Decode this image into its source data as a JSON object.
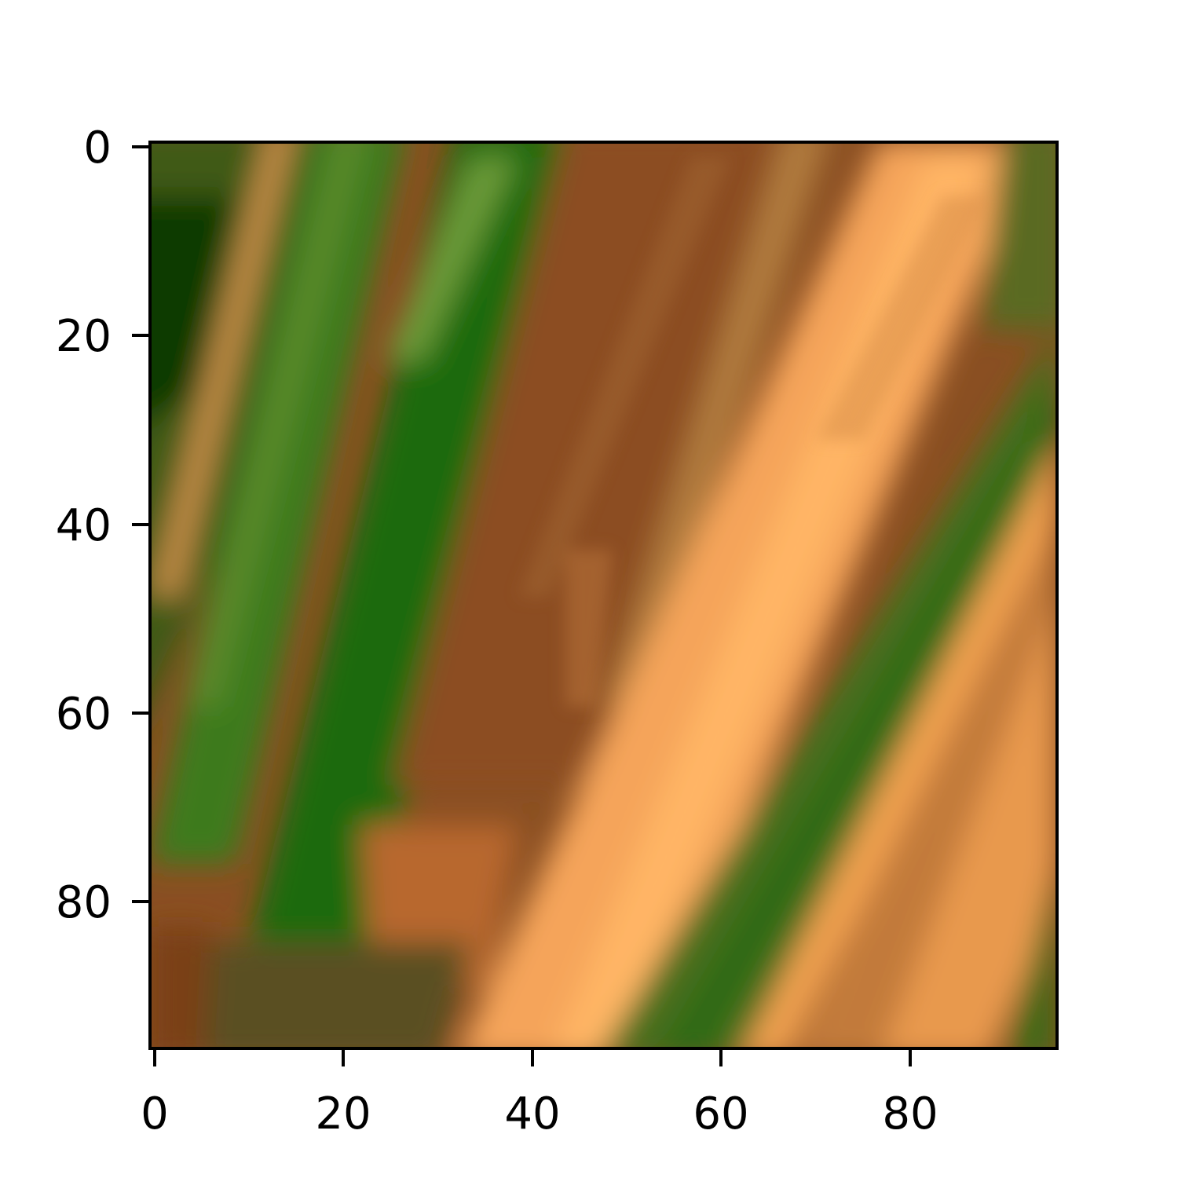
{
  "image": {
    "subject": "close-up of crop rows with green vegetation and tan/orange soil strips",
    "pixel_grid": "96x96",
    "dominant_colors": [
      "#8a4f22",
      "#f0a055",
      "#2f6a12",
      "#5a7a2a",
      "#0e3a04",
      "#c07a3a"
    ]
  },
  "axes": {
    "x_ticks": [
      "0",
      "20",
      "40",
      "60",
      "80"
    ],
    "y_ticks": [
      "0",
      "20",
      "40",
      "60",
      "80"
    ],
    "xlim": [
      -0.5,
      95.5
    ],
    "ylim": [
      95.5,
      -0.5
    ],
    "frame_color": "#000000"
  }
}
